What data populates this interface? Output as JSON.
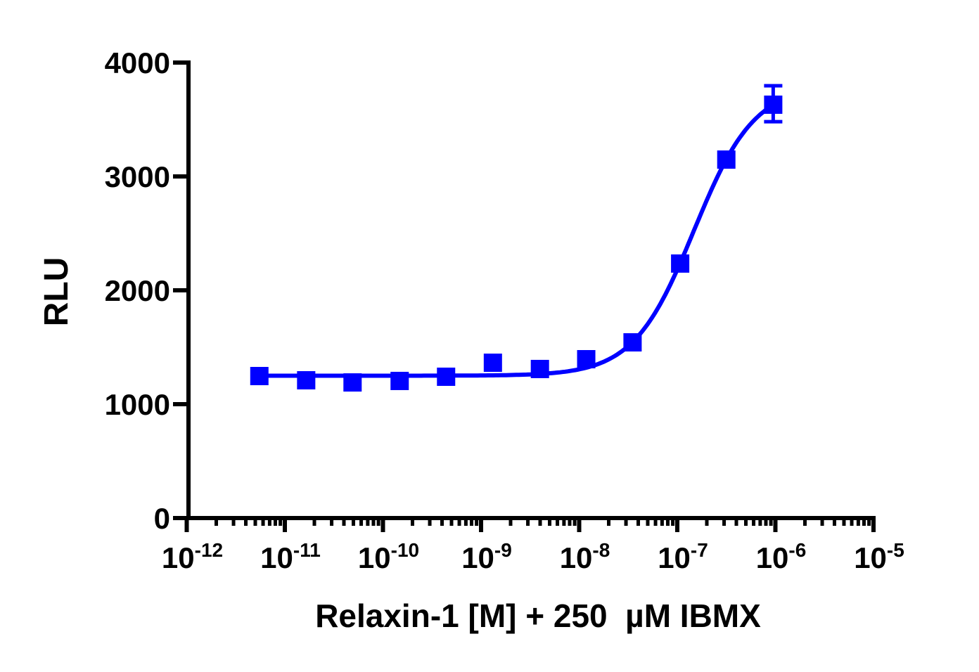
{
  "chart_data": {
    "type": "scatter",
    "title": "",
    "xlabel": "Relaxin-1 [M] + 250  µM IBMX",
    "ylabel": "RLU",
    "x_scale": "log",
    "xlim": [
      1e-12,
      1e-05
    ],
    "ylim": [
      0,
      4000
    ],
    "x_tick_labels": [
      {
        "base": "10",
        "exp": "-12"
      },
      {
        "base": "10",
        "exp": "-11"
      },
      {
        "base": "10",
        "exp": "-10"
      },
      {
        "base": "10",
        "exp": "-9"
      },
      {
        "base": "10",
        "exp": "-8"
      },
      {
        "base": "10",
        "exp": "-7"
      },
      {
        "base": "10",
        "exp": "-6"
      },
      {
        "base": "10",
        "exp": "-5"
      }
    ],
    "y_tick_labels": [
      "0",
      "1000",
      "2000",
      "3000",
      "4000"
    ],
    "grid": false,
    "legend": "none",
    "series_color": "#0000FF",
    "marker": "square",
    "points": [
      {
        "x": 5.5e-12,
        "y": 1247
      },
      {
        "x": 1.65e-11,
        "y": 1210
      },
      {
        "x": 4.9e-11,
        "y": 1191
      },
      {
        "x": 1.48e-10,
        "y": 1204
      },
      {
        "x": 4.4e-10,
        "y": 1241
      },
      {
        "x": 1.32e-09,
        "y": 1364
      },
      {
        "x": 3.98e-09,
        "y": 1309
      },
      {
        "x": 1.18e-08,
        "y": 1395
      },
      {
        "x": 3.5e-08,
        "y": 1543
      },
      {
        "x": 1.07e-07,
        "y": 2235
      },
      {
        "x": 3.16e-07,
        "y": 3148
      },
      {
        "x": 9.5e-07,
        "y": 3630,
        "err_low": 3481,
        "err_high": 3796
      }
    ],
    "fit": {
      "model": "4PL",
      "bottom": 1250,
      "top": 3800,
      "logEC50": -6.83,
      "hill": 1.41
    }
  }
}
